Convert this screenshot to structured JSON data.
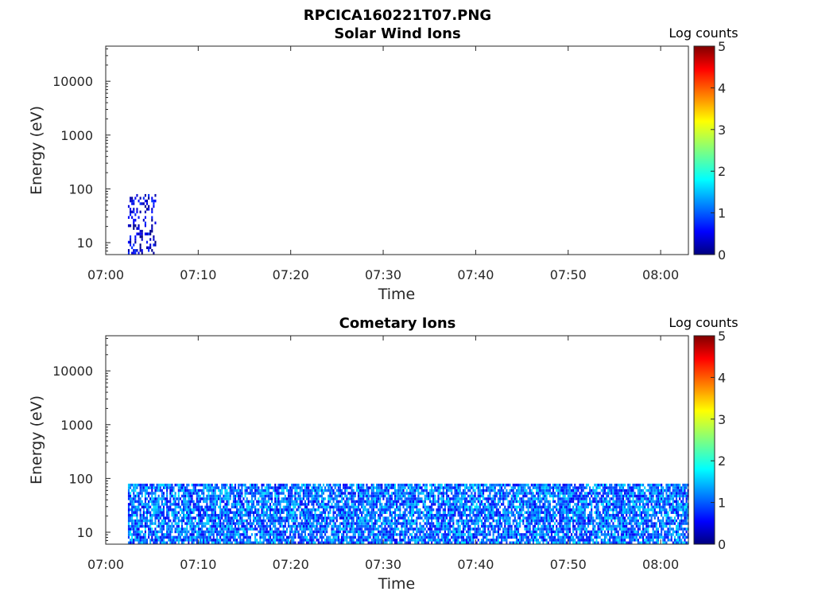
{
  "figure_title": "RPCICA160221T07.PNG",
  "chart_data": [
    {
      "type": "heatmap",
      "title": "Solar Wind Ions",
      "xlabel": "Time",
      "ylabel": "Energy (eV)",
      "x_tick_labels": [
        "07:00",
        "07:10",
        "07:20",
        "07:30",
        "07:40",
        "07:50",
        "08:00"
      ],
      "x_tick_minutes": [
        0,
        10,
        20,
        30,
        40,
        50,
        60
      ],
      "xlim_minutes": [
        0,
        63
      ],
      "y_tick_labels": [
        "10",
        "100",
        "1000",
        "10000"
      ],
      "y_tick_values": [
        10,
        100,
        1000,
        10000
      ],
      "ylim": [
        6,
        45000
      ],
      "y_scale": "log",
      "colorbar": {
        "label": "Log counts",
        "ticks": [
          "0",
          "1",
          "2",
          "3",
          "4",
          "5"
        ],
        "range": [
          0,
          5
        ],
        "colormap": "jet"
      },
      "data_regions": [
        {
          "t_start": 2.4,
          "t_end": 5.4,
          "e_min": 6,
          "e_max": 80,
          "level_low": 0.0,
          "level_high": 0.9,
          "density": 0.35
        }
      ]
    },
    {
      "type": "heatmap",
      "title": "Cometary Ions",
      "xlabel": "Time",
      "ylabel": "Energy (eV)",
      "x_tick_labels": [
        "07:00",
        "07:10",
        "07:20",
        "07:30",
        "07:40",
        "07:50",
        "08:00"
      ],
      "x_tick_minutes": [
        0,
        10,
        20,
        30,
        40,
        50,
        60
      ],
      "xlim_minutes": [
        0,
        63
      ],
      "y_tick_labels": [
        "10",
        "100",
        "1000",
        "10000"
      ],
      "y_tick_values": [
        10,
        100,
        1000,
        10000
      ],
      "ylim": [
        6,
        45000
      ],
      "y_scale": "log",
      "colorbar": {
        "label": "Log counts",
        "ticks": [
          "0",
          "1",
          "2",
          "3",
          "4",
          "5"
        ],
        "range": [
          0,
          5
        ],
        "colormap": "jet"
      },
      "data_regions": [
        {
          "t_start": 2.4,
          "t_end": 63,
          "e_min": 6,
          "e_max": 80,
          "level_low": 0.5,
          "level_high": 1.8,
          "density": 0.8
        }
      ]
    }
  ]
}
